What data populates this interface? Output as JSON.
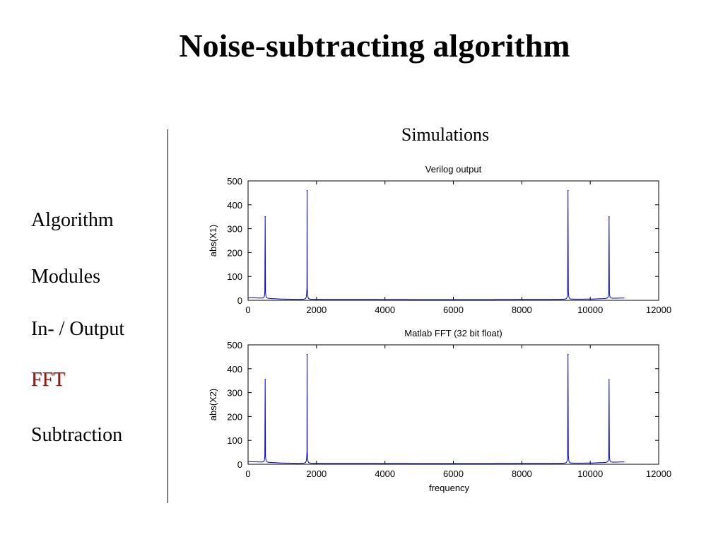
{
  "title": "Noise-subtracting algorithm",
  "sidebar": {
    "items": [
      {
        "label": "Algorithm",
        "active": false
      },
      {
        "label": "Modules",
        "active": false
      },
      {
        "label": "In- / Output",
        "active": false
      },
      {
        "label": "FFT",
        "active": true
      },
      {
        "label": "Subtraction",
        "active": false
      }
    ]
  },
  "simulations_heading": "Simulations",
  "colors": {
    "line": "#0000cc",
    "active_item": "#8b1a1a"
  },
  "chart_data": [
    {
      "type": "line",
      "title": "Verilog output",
      "xlabel": "",
      "ylabel": "abs(X1)",
      "xlim": [
        0,
        12000
      ],
      "ylim": [
        0,
        500
      ],
      "xticks": [
        0,
        2000,
        4000,
        6000,
        8000,
        10000,
        12000
      ],
      "yticks": [
        0,
        100,
        200,
        300,
        400,
        500
      ],
      "grid": false,
      "series": [
        {
          "baseline": [
            [
              0,
              11
            ],
            [
              250,
              10
            ],
            [
              1000,
              5
            ],
            [
              1500,
              4
            ],
            [
              2000,
              4
            ],
            [
              5000,
              3
            ],
            [
              7000,
              3
            ],
            [
              9000,
              4
            ],
            [
              10000,
              5
            ],
            [
              11000,
              10
            ]
          ],
          "peaks": [
            [
              500,
              350
            ],
            [
              1725,
              460
            ],
            [
              9350,
              460
            ],
            [
              10550,
              350
            ]
          ]
        }
      ]
    },
    {
      "type": "line",
      "title": "Matlab FFT (32 bit float)",
      "xlabel": "frequency",
      "ylabel": "abs(X2)",
      "xlim": [
        0,
        12000
      ],
      "ylim": [
        0,
        500
      ],
      "xticks": [
        0,
        2000,
        4000,
        6000,
        8000,
        10000,
        12000
      ],
      "yticks": [
        0,
        100,
        200,
        300,
        400,
        500
      ],
      "grid": false,
      "series": [
        {
          "baseline": [
            [
              0,
              11
            ],
            [
              250,
              10
            ],
            [
              1000,
              5
            ],
            [
              1500,
              4
            ],
            [
              2000,
              4
            ],
            [
              5000,
              3
            ],
            [
              7000,
              3
            ],
            [
              9000,
              4
            ],
            [
              10000,
              5
            ],
            [
              11000,
              10
            ]
          ],
          "peaks": [
            [
              500,
              355
            ],
            [
              1725,
              460
            ],
            [
              9350,
              460
            ],
            [
              10550,
              355
            ]
          ]
        }
      ]
    }
  ]
}
